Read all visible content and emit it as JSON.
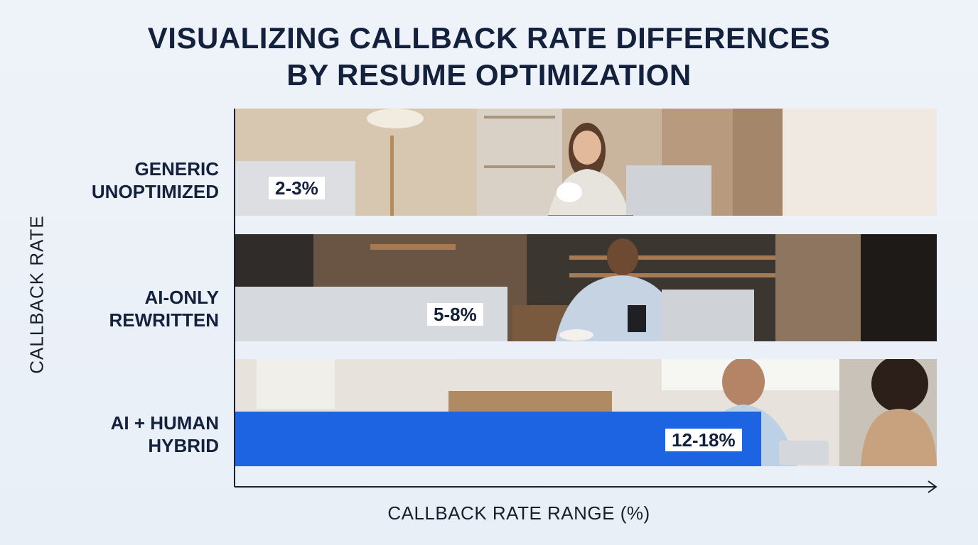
{
  "chart_data": {
    "type": "bar",
    "orientation": "horizontal",
    "title_lines": [
      "VISUALIZING CALLBACK RATE DIFFERENCES",
      "BY RESUME OPTIMIZATION"
    ],
    "ylabel": "CALLBACK RATE",
    "xlabel": "CALLBACK RATE RANGE (%)",
    "categories": [
      {
        "lines": [
          "GENERIC",
          "UNOPTIMIZED"
        ]
      },
      {
        "lines": [
          "AI-ONLY",
          "REWRITTEN"
        ]
      },
      {
        "lines": [
          "AI + HUMAN",
          "HYBRID"
        ]
      }
    ],
    "series": [
      {
        "values": [
          3,
          8,
          18
        ],
        "data_labels": [
          "2-3%",
          "5-8%",
          "12-18%"
        ]
      }
    ],
    "xlim": [
      0,
      24
    ],
    "colors": {
      "bars": [
        "#dcdee2",
        "#d6d9de",
        "#1d64e3"
      ],
      "title": "#14213d",
      "axis": "#1a1f2e"
    },
    "legend": "none",
    "grid": false,
    "background_images": [
      "woman-laptop-cafe-photo",
      "man-phone-coffee-shop-photo",
      "two-people-meeting-office-photo"
    ]
  }
}
